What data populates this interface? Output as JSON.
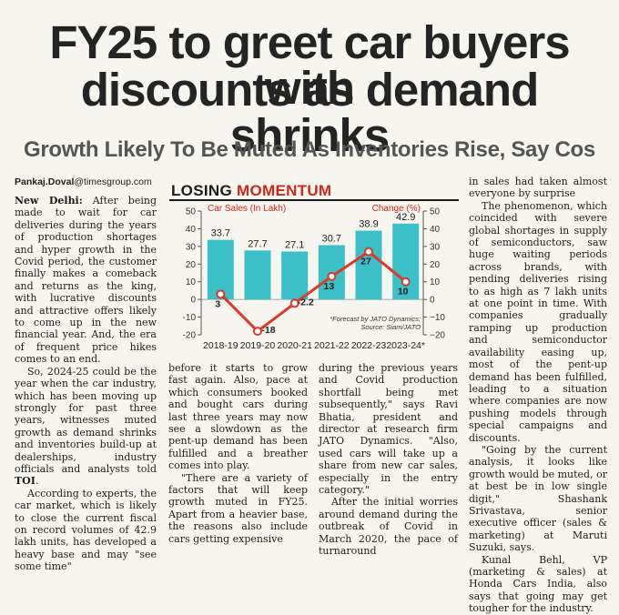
{
  "article": {
    "headline_line1": "FY25 to greet car buyers with",
    "headline_line2": "discounts as demand shrinks",
    "deck": "Growth Likely To Be Muted As Inventories Rise, Say Cos",
    "byline_name": "Pankaj.Doval",
    "byline_email": "@timesgroup.com",
    "dateline": "New Delhi:",
    "col1_p1_rest": " After being made to wait for car deliveries during the years of production shortages and hyper growth in the Covid period, the customer finally makes a comeback and returns as the king, with lucrative discounts and attractive offers likely to come up in the new financial year. And, the era of frequent price hikes comes to an end.",
    "col1_p2_text": "So, 2024-25 could be the year when the car industry, which has been moving up strongly for past three years, witnesses muted growth as demand shrinks and inventories build-up at dealerships, industry officials and analysts told",
    "col1_p2_toi": "TOI",
    "col1_p2_end": ".",
    "col1_p3": "According to experts, the car market, which is likely to close the current fiscal on record volumes of 42.9 lakh units, has developed a heavy base and may \"see some time\"",
    "col2_p1": "before it starts to grow fast again. Also, pace at which consumers booked and bought cars during last three years may now see a slowdown as the pent-up demand has been fulfilled and a breather comes into play.",
    "col2_p2": "\"There are a variety of factors that will keep growth muted in FY25. Apart from a heavier base, the reasons also include cars getting expensive",
    "col3_p1": "during the previous years and Covid production shortfall being met subsequently,\" says Ravi Bhatia, president and director at research firm JATO Dynamics. \"Also, used cars will take up a share from new car sales, especially in the entry category.\"",
    "col3_p2": "After the initial worries around demand during the outbreak of Covid in March 2020, the pace of turnaround",
    "col4_p1": "in sales had taken almost everyone by surprise",
    "col4_p2": "The phenomenon, which coincided with severe global shortages in supply of semiconductors, saw huge waiting periods across brands, with pending deliveries rising to as high as 7 lakh units at one point in time. With companies gradually ramping up production and semiconductor availability easing up, most of the pent-up demand has been fulfilled, leading to a situation where companies are now pushing models through special campaigns and discounts.",
    "col4_p3": "\"Going by the current analysis, it looks like growth would be muted, or at best be in low single digit,\" Shashank Srivastava, senior executive officer (sales & marketing) at Maruti Suzuki, says.",
    "col4_p4": "Kunal Behl, VP (marketing & sales) at Honda Cars India, also says that going may get tougher for the industry."
  },
  "chart": {
    "title_part1": "LOSING ",
    "title_part2": "MOMENTUM",
    "footnote_line1": "*Forecast by JATO Dynamics;",
    "footnote_line2": "Source: Siam/JATO"
  },
  "chart_data": {
    "type": "bar",
    "categories": [
      "2018-19",
      "2019-20",
      "2020-21",
      "2021-22",
      "2022-23",
      "2023-24*"
    ],
    "series": [
      {
        "name": "Car Sales (In Lakh)",
        "type": "bar",
        "values": [
          33.7,
          27.7,
          27.1,
          30.7,
          38.9,
          42.9
        ],
        "color": "#3cc0c8"
      },
      {
        "name": "Change (%)",
        "type": "line",
        "values": [
          3,
          -18,
          -2.2,
          13,
          27,
          10
        ],
        "color": "#d93a2b"
      }
    ],
    "y_left": {
      "label": "Car Sales (In Lakh)",
      "ticks": [
        50,
        40,
        30,
        20,
        10,
        0,
        -10,
        -20
      ],
      "range": [
        -20,
        50
      ]
    },
    "y_right": {
      "label": "Change (%)",
      "ticks": [
        50,
        40,
        30,
        20,
        10,
        0,
        -10,
        -20
      ],
      "range": [
        -20,
        50
      ]
    },
    "colors": {
      "bar": "#3cc0c8",
      "line": "#d93a2b",
      "axis_label": "#d2261c"
    }
  }
}
